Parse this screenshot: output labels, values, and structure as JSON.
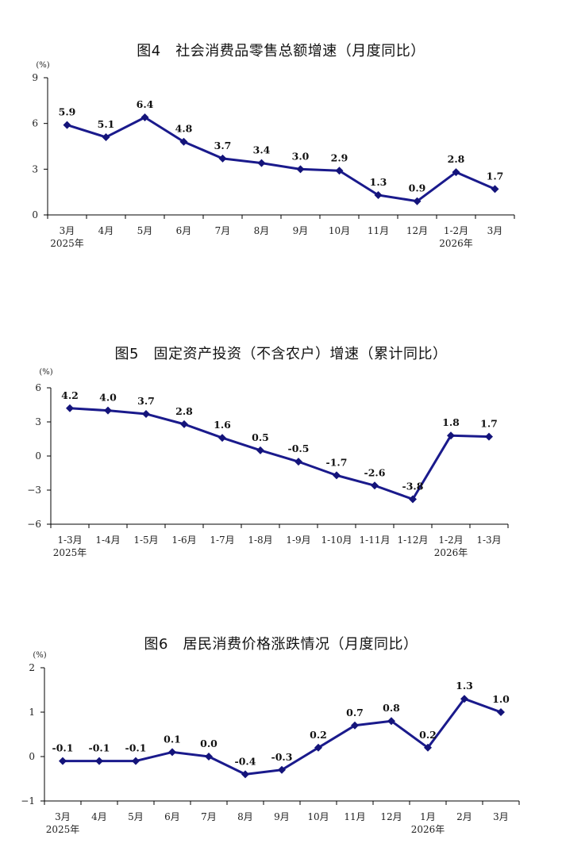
{
  "chart_data": [
    {
      "type": "line",
      "title": "图4　社会消费品零售总额增速（月度同比）",
      "unit": "(%)",
      "categories": [
        "3月",
        "4月",
        "5月",
        "6月",
        "7月",
        "8月",
        "9月",
        "10月",
        "11月",
        "12月",
        "1-2月",
        "3月"
      ],
      "year_labels": [
        {
          "index": 0,
          "text": "2025年"
        },
        {
          "index": 10,
          "text": "2026年"
        }
      ],
      "values": [
        5.9,
        5.1,
        6.4,
        4.8,
        3.7,
        3.4,
        3.0,
        2.9,
        1.3,
        0.9,
        2.8,
        1.7
      ],
      "value_labels": [
        "5.9",
        "5.1",
        "6.4",
        "4.8",
        "3.7",
        "3.4",
        "3.0",
        "2.9",
        "1.3",
        "0.9",
        "2.8",
        "1.7"
      ],
      "ylim": [
        0,
        9
      ],
      "yticks": [
        0,
        3,
        6,
        9
      ],
      "ytick_labels": [
        "0",
        "3",
        "6",
        "9"
      ],
      "color": "#1a1a8c"
    },
    {
      "type": "line",
      "title": "图5　固定资产投资（不含农户）增速（累计同比）",
      "unit": "(%)",
      "categories": [
        "1-3月",
        "1-4月",
        "1-5月",
        "1-6月",
        "1-7月",
        "1-8月",
        "1-9月",
        "1-10月",
        "1-11月",
        "1-12月",
        "1-2月",
        "1-3月"
      ],
      "year_labels": [
        {
          "index": 0,
          "text": "2025年"
        },
        {
          "index": 10,
          "text": "2026年"
        }
      ],
      "values": [
        4.2,
        4.0,
        3.7,
        2.8,
        1.6,
        0.5,
        -0.5,
        -1.7,
        -2.6,
        -3.8,
        1.8,
        1.7
      ],
      "value_labels": [
        "4.2",
        "4.0",
        "3.7",
        "2.8",
        "1.6",
        "0.5",
        "-0.5",
        "-1.7",
        "-2.6",
        "-3.8",
        "1.8",
        "1.7"
      ],
      "ylim": [
        -6,
        6
      ],
      "yticks": [
        -6,
        -3,
        0,
        3,
        6
      ],
      "ytick_labels": [
        "−6",
        "−3",
        "0",
        "3",
        "6"
      ],
      "color": "#1a1a8c"
    },
    {
      "type": "line",
      "title": "图6　居民消费价格涨跌情况（月度同比）",
      "unit": "(%)",
      "categories": [
        "3月",
        "4月",
        "5月",
        "6月",
        "7月",
        "8月",
        "9月",
        "10月",
        "11月",
        "12月",
        "1月",
        "2月",
        "3月"
      ],
      "year_labels": [
        {
          "index": 0,
          "text": "2025年"
        },
        {
          "index": 10,
          "text": "2026年"
        }
      ],
      "values": [
        -0.1,
        -0.1,
        -0.1,
        0.1,
        0.0,
        -0.4,
        -0.3,
        0.2,
        0.7,
        0.8,
        0.2,
        1.3,
        1.0
      ],
      "value_labels": [
        "-0.1",
        "-0.1",
        "-0.1",
        "0.1",
        "0.0",
        "-0.4",
        "-0.3",
        "0.2",
        "0.7",
        "0.8",
        "0.2",
        "1.3",
        "1.0"
      ],
      "ylim": [
        -1,
        2
      ],
      "yticks": [
        -1,
        0,
        1,
        2
      ],
      "ytick_labels": [
        "−1",
        "0",
        "1",
        "2"
      ],
      "color": "#1a1a8c"
    }
  ]
}
